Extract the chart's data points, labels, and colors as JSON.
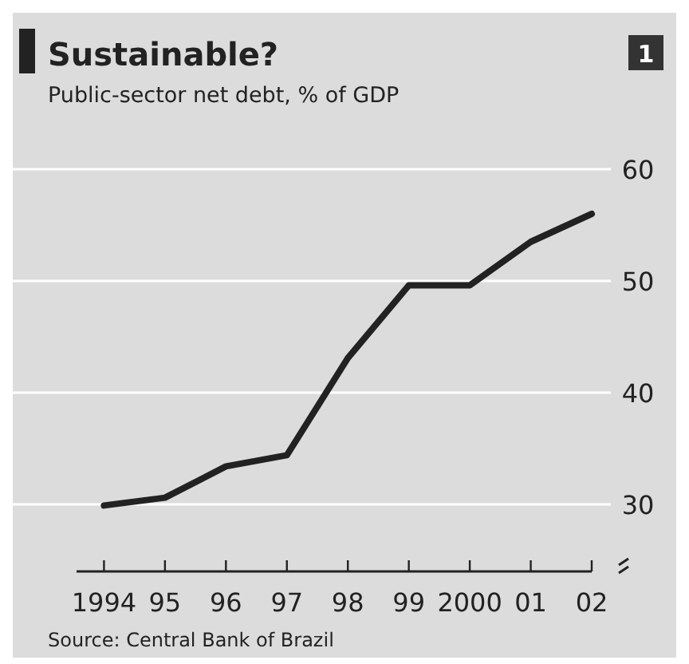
{
  "chart_data": {
    "type": "line",
    "title": "Sustainable?",
    "subtitle": "Public-sector net debt, % of GDP",
    "x": [
      1994,
      1995,
      1996,
      1997,
      1998,
      1999,
      2000,
      2001,
      2002
    ],
    "series": [
      {
        "color": "#222222",
        "values": [
          29.9,
          30.6,
          33.4,
          34.4,
          43.1,
          49.6,
          49.6,
          53.5,
          56.0
        ]
      }
    ],
    "xlim": [
      1993.55,
      2002
    ],
    "xticks": [
      1994,
      {
        "value": 1995,
        "label": "95"
      },
      {
        "value": 1996,
        "label": "96"
      },
      {
        "value": 1997,
        "label": "97"
      },
      {
        "value": 1998,
        "label": "98"
      },
      {
        "value": 1999,
        "label": "99"
      },
      2000,
      {
        "value": 2001,
        "label": "01"
      },
      {
        "value": 2002,
        "label": "02"
      }
    ],
    "ylim": [
      24,
      60
    ],
    "yticks": [
      30,
      40,
      50,
      60
    ],
    "grid": "y",
    "annotations": [
      "1",
      "Source: Central Bank of Brazil"
    ]
  }
}
